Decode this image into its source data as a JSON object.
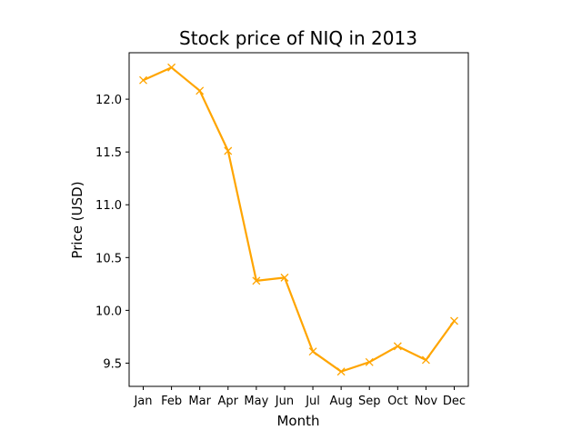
{
  "chart_data": {
    "type": "line",
    "title": "Stock price of NIQ in 2013",
    "xlabel": "Month",
    "ylabel": "Price (USD)",
    "categories": [
      "Jan",
      "Feb",
      "Mar",
      "Apr",
      "May",
      "Jun",
      "Jul",
      "Aug",
      "Sep",
      "Oct",
      "Nov",
      "Dec"
    ],
    "series": [
      {
        "values": [
          12.18,
          12.3,
          12.08,
          11.51,
          10.28,
          10.31,
          9.61,
          9.42,
          9.51,
          9.66,
          9.53,
          9.9
        ],
        "color": "#ffa500",
        "marker": "x"
      }
    ],
    "yticks": [
      9.5,
      10.0,
      10.5,
      11.0,
      11.5,
      12.0
    ],
    "ytick_labels": [
      "9.5",
      "10.0",
      "10.5",
      "11.0",
      "11.5",
      "12.0"
    ],
    "ylim": [
      9.28,
      12.44
    ],
    "grid": false,
    "legend": "none"
  }
}
